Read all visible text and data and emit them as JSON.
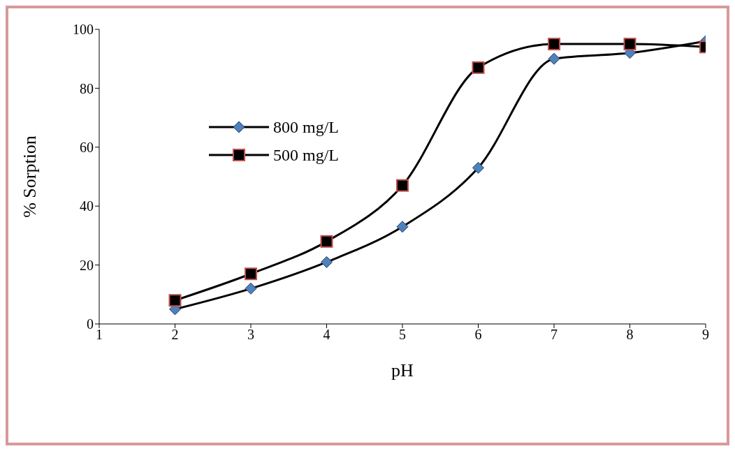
{
  "chart_data": {
    "type": "line",
    "xlabel": "pH",
    "ylabel": "% Sorption",
    "x": [
      2,
      3,
      4,
      5,
      6,
      7,
      8,
      9
    ],
    "series": [
      {
        "name": "800 mg/L",
        "color": "#000000",
        "marker": "diamond",
        "values": [
          5,
          12,
          21,
          33,
          53,
          90,
          92,
          96
        ]
      },
      {
        "name": "500 mg/L",
        "color": "#000000",
        "marker": "square",
        "values": [
          8,
          17,
          28,
          47,
          87,
          95,
          95,
          94
        ]
      }
    ],
    "xlim": [
      1,
      9
    ],
    "xticks": [
      1,
      2,
      3,
      4,
      5,
      6,
      7,
      8,
      9
    ],
    "ylim": [
      0,
      100
    ],
    "yticks": [
      0,
      20,
      40,
      60,
      80,
      100
    ],
    "legend": "top left",
    "grid": false,
    "line_style": "solid"
  }
}
